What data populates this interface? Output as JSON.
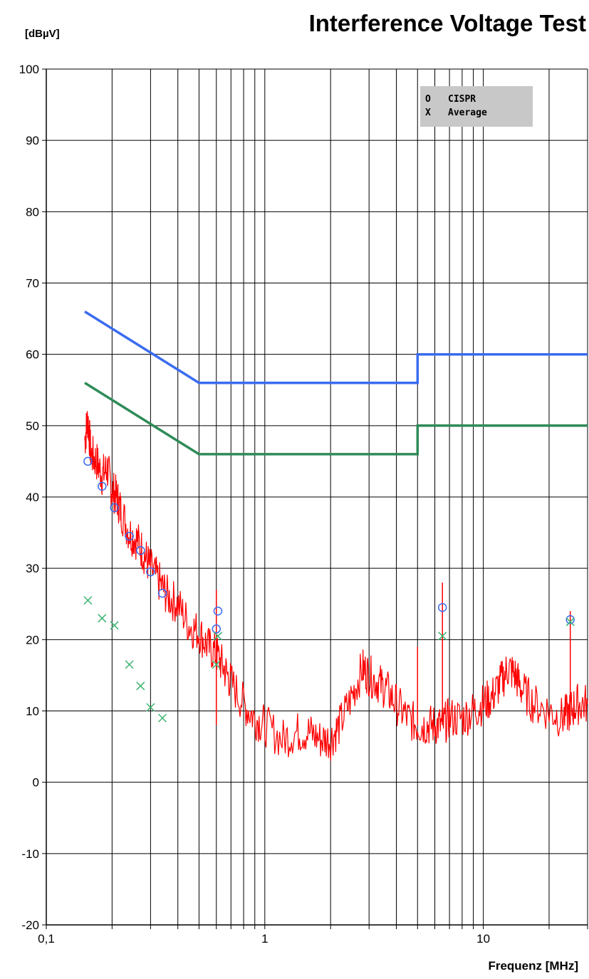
{
  "chart_data": {
    "type": "line",
    "title": "Interference Voltage Test",
    "ylabel": "[dBµV]",
    "xlabel": "Frequenz [MHz]",
    "x_scale": "log",
    "xlim": [
      0.1,
      30
    ],
    "ylim": [
      -20,
      100
    ],
    "x_tick_labels": [
      {
        "value": 0.1,
        "label": "0,1"
      },
      {
        "value": 1,
        "label": "1"
      },
      {
        "value": 10,
        "label": "10"
      }
    ],
    "y_ticks": [
      -20,
      -10,
      0,
      10,
      20,
      30,
      40,
      50,
      60,
      70,
      80,
      90,
      100
    ],
    "grid": true,
    "legend": {
      "placement": "top-right",
      "entries": [
        {
          "marker": "O",
          "label": "CISPR"
        },
        {
          "marker": "X",
          "label": "Average"
        }
      ]
    },
    "series": [
      {
        "style": "limit-line",
        "color": "#3a6cf0",
        "x": [
          0.15,
          0.5,
          5,
          5,
          30
        ],
        "y": [
          66,
          56,
          56,
          60,
          60
        ]
      },
      {
        "style": "limit-line",
        "color": "#2e8b57",
        "x": [
          0.15,
          0.5,
          5,
          5,
          30
        ],
        "y": [
          56,
          46,
          46,
          50,
          50
        ]
      },
      {
        "style": "spectrum",
        "color": "#ff0000",
        "x": [
          0.15,
          0.155,
          0.16,
          0.17,
          0.18,
          0.19,
          0.2,
          0.21,
          0.22,
          0.24,
          0.26,
          0.28,
          0.3,
          0.33,
          0.36,
          0.4,
          0.45,
          0.5,
          0.55,
          0.6,
          0.65,
          0.7,
          0.8,
          0.9,
          1.0,
          1.2,
          1.4,
          1.6,
          1.8,
          2.0,
          2.2,
          2.5,
          2.8,
          3.0,
          3.3,
          3.6,
          4.0,
          4.5,
          5.0,
          5.5,
          6.0,
          6.5,
          7.0,
          8.0,
          9.0,
          10,
          11,
          12,
          13,
          14,
          15,
          17,
          20,
          23,
          25,
          27,
          30
        ],
        "y": [
          48,
          51,
          46,
          45,
          43,
          44,
          41,
          40,
          38,
          35,
          34,
          32,
          30,
          28,
          26,
          25,
          22,
          21,
          19,
          18,
          16,
          14,
          11,
          9,
          8,
          6,
          7,
          7,
          6,
          6,
          8,
          12,
          16,
          15,
          14,
          13,
          11,
          9,
          8,
          8,
          8,
          8,
          9,
          9,
          10,
          11,
          12,
          14,
          16,
          15,
          13,
          11,
          10,
          9,
          10,
          11,
          11
        ]
      },
      {
        "style": "spike",
        "color": "#ff0000",
        "x": [
          0.6,
          5.0,
          6.5,
          25
        ],
        "y": [
          27,
          19,
          28,
          24
        ]
      },
      {
        "name": "CISPR",
        "style": "circle-markers",
        "color": "#3a6cf0",
        "x": [
          0.155,
          0.18,
          0.205,
          0.24,
          0.27,
          0.3,
          0.34,
          0.6,
          0.61,
          6.5,
          25
        ],
        "y": [
          45,
          41.5,
          38.5,
          34.5,
          32.5,
          29.5,
          26.5,
          21.5,
          24,
          24.5,
          22.8
        ]
      },
      {
        "name": "Average",
        "style": "x-markers",
        "color": "#3cb371",
        "x": [
          0.155,
          0.18,
          0.205,
          0.24,
          0.27,
          0.3,
          0.34,
          0.6,
          0.61,
          6.5,
          25
        ],
        "y": [
          25.5,
          23,
          22,
          16.5,
          13.5,
          10.5,
          9,
          16.5,
          20.5,
          20.5,
          22.5
        ]
      }
    ]
  }
}
